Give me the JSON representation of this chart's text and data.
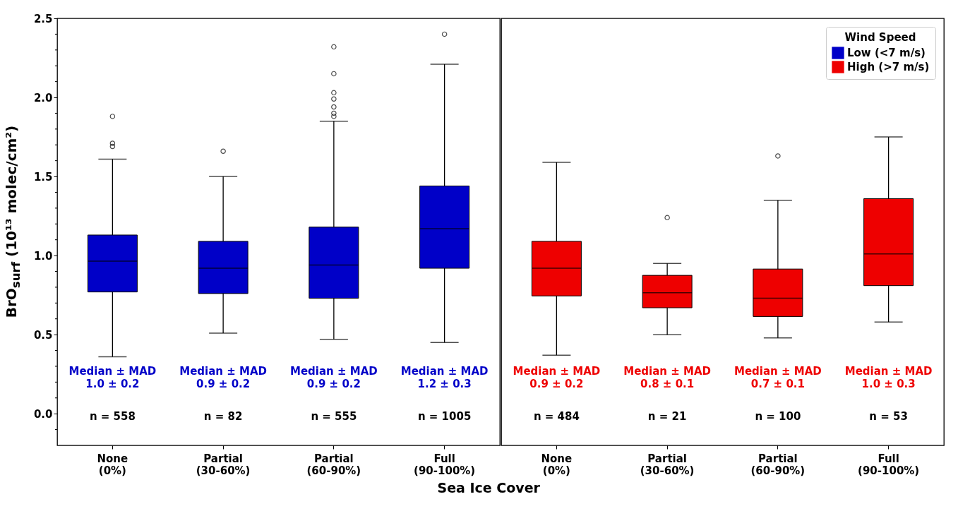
{
  "chart_data": [
    {
      "type": "box",
      "ylabel": "BrO$_{surf}$ (10¹³ molec/cm²)",
      "xlabel": "Sea Ice Cover",
      "categories": [
        "None\n(0%)",
        "Partial\n(30-60%)",
        "Partial\n(60-90%)",
        "Full\n(90-100%)"
      ],
      "ylim": [
        -0.2,
        2.5
      ],
      "yticks": [
        {
          "value": -0.1,
          "label": null
        },
        {
          "value": 0,
          "label": "0.0"
        },
        {
          "value": 0.1,
          "label": null
        },
        {
          "value": 0.2,
          "label": null
        },
        {
          "value": 0.3,
          "label": null
        },
        {
          "value": 0.4,
          "label": null
        },
        {
          "value": 0.5,
          "label": "0.5"
        },
        {
          "value": 0.6,
          "label": null
        },
        {
          "value": 0.7,
          "label": null
        },
        {
          "value": 0.8,
          "label": null
        },
        {
          "value": 0.9,
          "label": null
        },
        {
          "value": 1,
          "label": "1.0"
        },
        {
          "value": 1.1,
          "label": null
        },
        {
          "value": 1.2,
          "label": null
        },
        {
          "value": 1.3,
          "label": null
        },
        {
          "value": 1.4,
          "label": null
        },
        {
          "value": 1.5,
          "label": "1.5"
        },
        {
          "value": 1.6,
          "label": null
        },
        {
          "value": 1.7,
          "label": null
        },
        {
          "value": 1.8,
          "label": null
        },
        {
          "value": 1.9,
          "label": null
        },
        {
          "value": 2,
          "label": "2.0"
        },
        {
          "value": 2.1,
          "label": null
        },
        {
          "value": 2.2,
          "label": null
        },
        {
          "value": 2.3,
          "label": null
        },
        {
          "value": 2.4,
          "label": null
        },
        {
          "value": 2.5,
          "label": "2.5"
        }
      ],
      "series": [
        {
          "name": "Low (<7 m/s)",
          "color": "#0000c8",
          "boxes": [
            {
              "low": 0.36,
              "q1": 0.77,
              "median": 0.965,
              "q3": 1.13,
              "high": 1.61,
              "outliers": [
                1.88,
                1.71,
                1.69
              ]
            },
            {
              "low": 0.51,
              "q1": 0.76,
              "median": 0.92,
              "q3": 1.09,
              "high": 1.5,
              "outliers": [
                1.66
              ]
            },
            {
              "low": 0.47,
              "q1": 0.73,
              "median": 0.94,
              "q3": 1.18,
              "high": 1.85,
              "outliers": [
                2.32,
                2.15,
                2.03,
                1.99,
                1.94,
                1.9,
                1.88
              ]
            },
            {
              "low": 0.45,
              "q1": 0.92,
              "median": 1.17,
              "q3": 1.44,
              "high": 2.21,
              "outliers": [
                2.4
              ]
            }
          ]
        }
      ],
      "annotations": [
        "Median ± MAD\n1.0 ±  0.2",
        "Median ± MAD\n0.9 ±  0.2",
        "Median ± MAD\n0.9 ±  0.2",
        "Median ± MAD\n1.2 ±  0.3",
        "n = 558",
        "n = 82",
        "n = 555",
        "n = 1005"
      ]
    },
    {
      "type": "box",
      "categories": [
        "None\n(0%)",
        "Partial\n(30-60%)",
        "Partial\n(60-90%)",
        "Full\n(90-100%)"
      ],
      "ylim": [
        -0.2,
        2.5
      ],
      "tick_labels": "x",
      "legend": "top right",
      "legend_title": "Wind Speed",
      "series": [
        {
          "name": "High (>7 m/s)",
          "color": "#ee0000",
          "boxes": [
            {
              "low": 0.37,
              "q1": 0.745,
              "median": 0.92,
              "q3": 1.09,
              "high": 1.59
            },
            {
              "low": 0.5,
              "q1": 0.67,
              "median": 0.765,
              "q3": 0.875,
              "high": 0.95,
              "outliers": [
                1.24
              ]
            },
            {
              "low": 0.48,
              "q1": 0.615,
              "median": 0.73,
              "q3": 0.915,
              "high": 1.35,
              "outliers": [
                1.63
              ]
            },
            {
              "low": 0.58,
              "q1": 0.81,
              "median": 1.01,
              "q3": 1.36,
              "high": 1.75
            }
          ]
        }
      ],
      "annotations": [
        "Median ± MAD\n0.9 ±  0.2",
        "Median ± MAD\n0.8 ±  0.1",
        "Median ± MAD\n0.7 ±  0.1",
        "Median ± MAD\n1.0 ±  0.3",
        "n = 484",
        "n = 21",
        "n = 100",
        "n = 53"
      ]
    }
  ]
}
